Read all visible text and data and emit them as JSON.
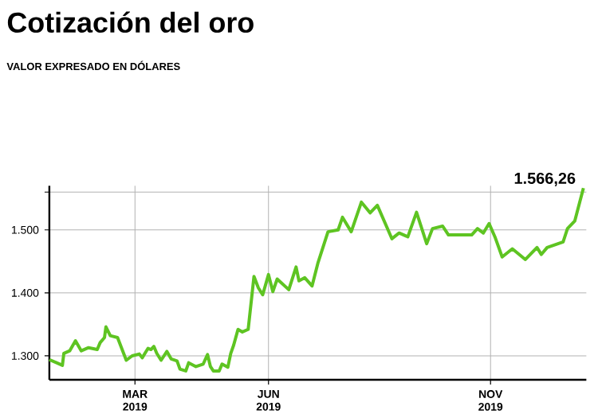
{
  "chart_data": {
    "type": "line",
    "title": "Cotización del oro",
    "subtitle": "VALOR EXPRESADO EN DÓLARES",
    "x": [
      "2019-01-01",
      "2019-01-06",
      "2019-01-10",
      "2019-01-11",
      "2019-01-15",
      "2019-01-19",
      "2019-01-23",
      "2019-01-28",
      "2019-02-03",
      "2019-02-05",
      "2019-02-08",
      "2019-02-09",
      "2019-02-12",
      "2019-02-17",
      "2019-02-23",
      "2019-02-27",
      "2019-03-04",
      "2019-03-06",
      "2019-03-10",
      "2019-03-12",
      "2019-03-14",
      "2019-03-16",
      "2019-03-19",
      "2019-03-23",
      "2019-03-26",
      "2019-03-30",
      "2019-04-01",
      "2019-04-05",
      "2019-04-07",
      "2019-04-12",
      "2019-04-17",
      "2019-04-20",
      "2019-04-22",
      "2019-04-24",
      "2019-04-28",
      "2019-04-30",
      "2019-05-04",
      "2019-05-06",
      "2019-05-08",
      "2019-05-11",
      "2019-05-14",
      "2019-05-18",
      "2019-05-22",
      "2019-05-25",
      "2019-05-28",
      "2019-06-01",
      "2019-06-04",
      "2019-06-07",
      "2019-06-15",
      "2019-06-20",
      "2019-06-22",
      "2019-06-26",
      "2019-07-01",
      "2019-07-05",
      "2019-07-12",
      "2019-07-19",
      "2019-07-22",
      "2019-07-28",
      "2019-08-04",
      "2019-08-10",
      "2019-08-15",
      "2019-08-25",
      "2019-08-30",
      "2019-09-05",
      "2019-09-11",
      "2019-09-18",
      "2019-09-22",
      "2019-09-29",
      "2019-10-03",
      "2019-10-19",
      "2019-10-23",
      "2019-10-27",
      "2019-10-31",
      "2019-11-04",
      "2019-11-09",
      "2019-11-16",
      "2019-11-25",
      "2019-12-03",
      "2019-12-06",
      "2019-12-10",
      "2019-12-21",
      "2019-12-24",
      "2019-12-29",
      "2020-01-04"
    ],
    "values": [
      1294,
      1289,
      1285,
      1304,
      1308,
      1324,
      1308,
      1313,
      1310,
      1321,
      1329,
      1346,
      1332,
      1329,
      1293,
      1300,
      1303,
      1297,
      1312,
      1310,
      1315,
      1304,
      1293,
      1307,
      1295,
      1292,
      1279,
      1276,
      1289,
      1283,
      1287,
      1302,
      1283,
      1276,
      1276,
      1287,
      1282,
      1304,
      1317,
      1342,
      1338,
      1342,
      1426,
      1408,
      1397,
      1429,
      1402,
      1422,
      1405,
      1441,
      1419,
      1424,
      1411,
      1447,
      1497,
      1500,
      1520,
      1497,
      1544,
      1527,
      1539,
      1486,
      1495,
      1489,
      1528,
      1478,
      1502,
      1506,
      1492,
      1492,
      1502,
      1495,
      1510,
      1489,
      1457,
      1470,
      1453,
      1472,
      1461,
      1472,
      1481,
      1502,
      1514,
      1566.26
    ],
    "color": "#5ec422",
    "xlim": [
      "2019-01-01",
      "2020-01-06"
    ],
    "xticks": [
      {
        "value": "2019-03-01",
        "label": "MAR 2019"
      },
      {
        "value": "2019-06-01",
        "label": "JUN 2019"
      },
      {
        "value": "2019-11-01",
        "label": "NOV 2019"
      }
    ],
    "ylim": [
      1262,
      1570
    ],
    "yticks": [
      {
        "value": 1300,
        "label": "1.300"
      },
      {
        "value": 1400,
        "label": "1.400"
      },
      {
        "value": 1500,
        "label": "1.500"
      },
      {
        "value": 1560,
        "label": null
      }
    ],
    "grid": true,
    "annotations": [
      {
        "text": "1.566,26",
        "x": "2020-01-04",
        "y": 1566.26
      }
    ]
  }
}
